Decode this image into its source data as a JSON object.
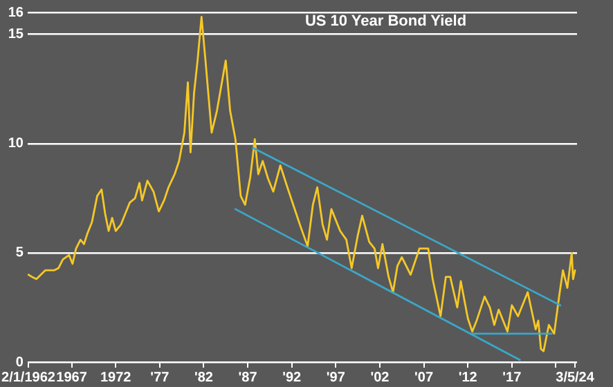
{
  "chart_data": {
    "type": "line",
    "title": "US 10 Year Bond Yield",
    "xlim": [
      1962.0,
      2024.4
    ],
    "ylim": [
      0,
      16
    ],
    "yticks": [
      0,
      5,
      10,
      15,
      16
    ],
    "xticks": [
      {
        "value": 1962.08,
        "label": "2/1/1962"
      },
      {
        "value": 1967,
        "label": "1967"
      },
      {
        "value": 1972,
        "label": "1972"
      },
      {
        "value": 1977,
        "label": "'77"
      },
      {
        "value": 1982,
        "label": "'82"
      },
      {
        "value": 1987,
        "label": "'87"
      },
      {
        "value": 1992,
        "label": "'92"
      },
      {
        "value": 1997,
        "label": "'97"
      },
      {
        "value": 2002,
        "label": "'02"
      },
      {
        "value": 2007,
        "label": "'07"
      },
      {
        "value": 2012,
        "label": "'12"
      },
      {
        "value": 2017,
        "label": "'17"
      },
      {
        "value": 2022,
        "label": null
      },
      {
        "value": 2024.17,
        "label": "3/5/24"
      }
    ],
    "grid": "y",
    "legend": false,
    "marker": "none",
    "line_style": "solid",
    "series": [
      {
        "color": "#f5c827",
        "x": [
          1962.08,
          1962.5,
          1963.0,
          1963.5,
          1964.0,
          1964.5,
          1965.0,
          1965.5,
          1966.0,
          1966.7,
          1967.1,
          1967.5,
          1968.0,
          1968.4,
          1968.8,
          1969.3,
          1969.9,
          1970.4,
          1970.8,
          1971.2,
          1971.6,
          1972.0,
          1972.6,
          1973.1,
          1973.6,
          1974.2,
          1974.7,
          1975.0,
          1975.6,
          1976.3,
          1976.9,
          1977.5,
          1978.0,
          1978.7,
          1979.2,
          1979.8,
          1980.2,
          1980.5,
          1980.9,
          1981.3,
          1981.75,
          1982.2,
          1982.9,
          1983.5,
          1984.5,
          1985.0,
          1985.6,
          1986.2,
          1986.7,
          1987.3,
          1987.8,
          1988.2,
          1988.7,
          1989.3,
          1989.9,
          1990.7,
          1991.5,
          1992.5,
          1993.0,
          1993.8,
          1994.4,
          1994.9,
          1995.5,
          1996.0,
          1996.5,
          1997.5,
          1998.2,
          1998.8,
          1999.5,
          2000.0,
          2000.8,
          2001.4,
          2001.8,
          2002.3,
          2003.0,
          2003.5,
          2004.0,
          2004.5,
          2005.5,
          2006.5,
          2007.5,
          2008.0,
          2008.9,
          2009.5,
          2010.0,
          2010.8,
          2011.2,
          2012.0,
          2012.5,
          2013.0,
          2013.9,
          2014.5,
          2015.0,
          2015.5,
          2016.5,
          2017.0,
          2017.7,
          2018.8,
          2019.7,
          2020.0,
          2020.3,
          2020.6,
          2021.2,
          2021.8,
          2022.4,
          2022.8,
          2023.3,
          2023.8,
          2023.95,
          2024.17
        ],
        "values": [
          4.0,
          3.9,
          3.8,
          4.0,
          4.2,
          4.2,
          4.2,
          4.3,
          4.7,
          4.9,
          4.5,
          5.2,
          5.6,
          5.4,
          5.9,
          6.4,
          7.6,
          7.9,
          6.8,
          6.0,
          6.6,
          6.0,
          6.3,
          6.8,
          7.3,
          7.5,
          8.2,
          7.4,
          8.3,
          7.8,
          6.9,
          7.4,
          8.0,
          8.6,
          9.2,
          10.5,
          12.8,
          9.6,
          12.3,
          13.8,
          15.8,
          13.8,
          10.5,
          11.5,
          13.8,
          11.5,
          10.2,
          7.6,
          7.2,
          8.5,
          10.2,
          8.6,
          9.2,
          8.4,
          7.8,
          9.0,
          8.0,
          6.8,
          6.2,
          5.3,
          7.2,
          8.0,
          6.3,
          5.6,
          7.0,
          6.0,
          5.6,
          4.3,
          5.8,
          6.7,
          5.5,
          5.2,
          4.3,
          5.4,
          3.9,
          3.2,
          4.4,
          4.8,
          4.0,
          5.2,
          5.2,
          3.8,
          2.1,
          3.9,
          3.9,
          2.5,
          3.7,
          2.0,
          1.4,
          1.9,
          3.0,
          2.5,
          1.7,
          2.4,
          1.4,
          2.6,
          2.1,
          3.2,
          1.5,
          1.9,
          0.6,
          0.5,
          1.7,
          1.3,
          3.1,
          4.2,
          3.4,
          5.0,
          3.8,
          4.2
        ]
      },
      {
        "type": "line",
        "color": "#3ba7c9",
        "x": [
          1987.6,
          2022.5
        ],
        "values": [
          9.8,
          2.6
        ]
      },
      {
        "type": "line",
        "color": "#3ba7c9",
        "x": [
          1985.6,
          2017.9
        ],
        "values": [
          7.0,
          0.1
        ]
      },
      {
        "type": "line",
        "color": "#3ba7c9",
        "x": [
          2012.4,
          2021.5
        ],
        "values": [
          1.3,
          1.3
        ]
      }
    ]
  }
}
